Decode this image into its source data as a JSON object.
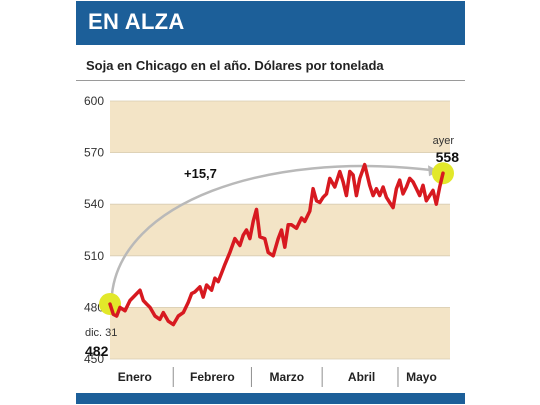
{
  "header": {
    "title": "EN ALZA"
  },
  "subtitle": "Soja en Chicago en el año. Dólares por tonelada",
  "colors": {
    "brand_blue": "#1c5f99",
    "band": "#f3e4c6",
    "line": "#d71920",
    "highlight": "#e2e82a",
    "arrow": "#b9b9b9"
  },
  "chart_data": {
    "type": "line",
    "title": "EN ALZA",
    "subtitle": "Soja en Chicago en el año. Dólares por tonelada",
    "ylim": [
      450,
      600
    ],
    "yticks": [
      600,
      570,
      540,
      510,
      480,
      450
    ],
    "ytick_labels": [
      "600",
      "570",
      "540",
      "510",
      "480",
      "450"
    ],
    "xlim": [
      0,
      1
    ],
    "month_labels": [
      "Enero",
      "Febrero",
      "Marzo",
      "Abril",
      "Mayo"
    ],
    "month_positions": [
      0.073,
      0.301,
      0.52,
      0.74,
      0.916
    ],
    "month_dividers": [
      0.186,
      0.416,
      0.624,
      0.847
    ],
    "series": [
      {
        "x": [
          0.0,
          0.01,
          0.02,
          0.03,
          0.045,
          0.06,
          0.075,
          0.09,
          0.1,
          0.11,
          0.12,
          0.135,
          0.15,
          0.16,
          0.175,
          0.19,
          0.205,
          0.22,
          0.235,
          0.245,
          0.255,
          0.27,
          0.28,
          0.29,
          0.305,
          0.315,
          0.325,
          0.335,
          0.345,
          0.36,
          0.375,
          0.39,
          0.4,
          0.41,
          0.42,
          0.43,
          0.44,
          0.45,
          0.465,
          0.475,
          0.49,
          0.505,
          0.515,
          0.525,
          0.535,
          0.545,
          0.56,
          0.575,
          0.585,
          0.6,
          0.61,
          0.62,
          0.63,
          0.64,
          0.65,
          0.66,
          0.675,
          0.69,
          0.7,
          0.71,
          0.72,
          0.73,
          0.74,
          0.75,
          0.765,
          0.78,
          0.79,
          0.8,
          0.81,
          0.82,
          0.83,
          0.84,
          0.85,
          0.86,
          0.87,
          0.88,
          0.89,
          0.9,
          0.91,
          0.92,
          0.93,
          0.94,
          0.95,
          0.96,
          0.97,
          0.98,
          0.99,
          1.0
        ],
        "y": [
          482,
          476,
          475,
          480,
          478,
          484,
          487,
          490,
          484,
          482,
          480,
          475,
          473,
          477,
          472,
          470,
          475,
          477,
          483,
          488,
          489,
          492,
          486,
          493,
          490,
          497,
          495,
          500,
          505,
          512,
          520,
          516,
          522,
          525,
          520,
          530,
          537,
          521,
          520,
          512,
          510,
          520,
          525,
          515,
          528,
          528,
          526,
          532,
          530,
          536,
          549,
          542,
          541,
          544,
          546,
          555,
          550,
          559,
          553,
          545,
          559,
          557,
          545,
          555,
          563,
          551,
          545,
          549,
          545,
          550,
          544,
          541,
          538,
          549,
          554,
          546,
          550,
          555,
          553,
          549,
          545,
          551,
          542,
          545,
          548,
          540,
          550,
          558
        ]
      }
    ],
    "annotations": {
      "start_label": "dic. 31",
      "start_value": "482",
      "end_label": "ayer",
      "end_value": "558",
      "change": "+15,7"
    },
    "bands": [
      [
        570,
        600
      ],
      [
        510,
        540
      ],
      [
        450,
        480
      ]
    ]
  }
}
